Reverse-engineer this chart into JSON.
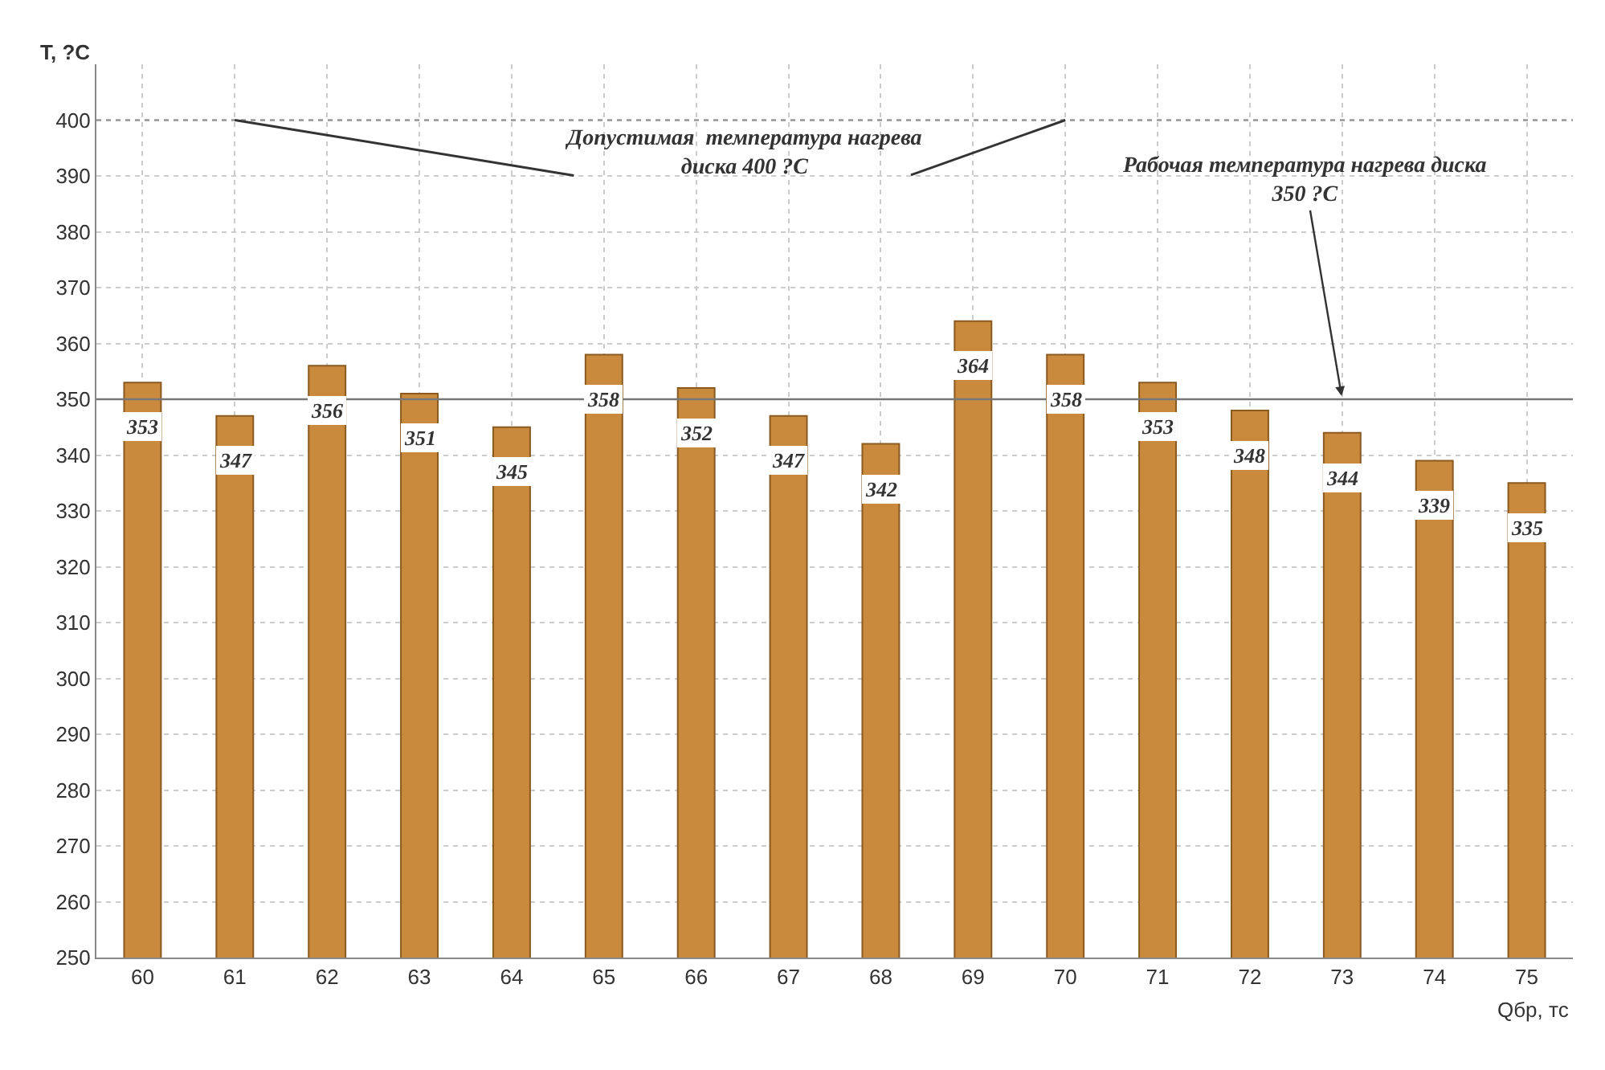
{
  "chart_data": {
    "type": "bar",
    "xlabel": "Qбр, тс",
    "ylabel": "T, ?C",
    "categories": [
      "60",
      "61",
      "62",
      "63",
      "64",
      "65",
      "66",
      "67",
      "68",
      "69",
      "70",
      "71",
      "72",
      "73",
      "74",
      "75"
    ],
    "values": [
      353,
      347,
      356,
      351,
      345,
      358,
      352,
      347,
      342,
      364,
      358,
      353,
      348,
      344,
      339,
      335
    ],
    "color": "#c98a3e",
    "data_labels": true,
    "ylim": [
      250,
      410
    ],
    "yticks": [
      250,
      260,
      270,
      280,
      290,
      300,
      310,
      320,
      330,
      340,
      350,
      360,
      370,
      380,
      390,
      400
    ],
    "grid": true,
    "annotations": [
      {
        "text": "Допустимая  температура нагрева\nдиска 400 ?С",
        "y": 400
      },
      {
        "text": "Рабочая температура нагрева диска\n350 ?С",
        "x": "73",
        "y": 350
      }
    ],
    "ref_lines": [
      {
        "axis": "y",
        "value": 400,
        "color": "#999999",
        "line_style": "dotted"
      },
      {
        "axis": "y",
        "value": 350,
        "color": "#777777",
        "line_style": "solid"
      }
    ]
  }
}
